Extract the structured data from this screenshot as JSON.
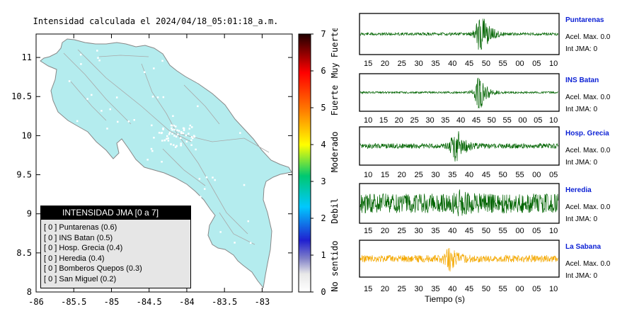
{
  "map": {
    "title": "Intensidad calculada el 2024/04/18_05:01:18_a.m.",
    "x_ticks": [
      "-86",
      "-85.5",
      "-85",
      "-84.5",
      "-84",
      "-83.5",
      "-83"
    ],
    "y_ticks": [
      "11",
      "10.5",
      "10",
      "9.5",
      "9",
      "8.5",
      "8"
    ],
    "xlim": [
      -86,
      -82.6
    ],
    "ylim": [
      8,
      11.3
    ],
    "land_color": "#b4ecee"
  },
  "legend": {
    "title": "INTENSIDAD JMA [0 a 7]",
    "items": [
      "[ 0 ]  Puntarenas (0.6)",
      "[ 0 ]  INS Batan (0.5)",
      "[ 0 ]  Hosp. Grecia (0.4)",
      "[ 0 ]  Heredia (0.4)",
      "[ 0 ]  Bomberos Quepos (0.3)",
      "[ 0 ]  San Miguel (0.2)"
    ]
  },
  "colorbar": {
    "ticks": [
      "7",
      "6",
      "5",
      "4",
      "3",
      "2",
      "1",
      "0"
    ],
    "labels": [
      "Muy Fuerte",
      "Fuerte",
      "Moderado",
      "Debil",
      "No sentido"
    ],
    "range": [
      0,
      7
    ]
  },
  "chart_data": [
    {
      "type": "line",
      "name": "Puntarenas",
      "acel": "Acel. Max. 0.0",
      "int": "Int JMA: 0",
      "color": "#006400",
      "x_ticks": [
        "15",
        "20",
        "25",
        "30",
        "35",
        "40",
        "45",
        "50",
        "55",
        "00",
        "05",
        "10"
      ],
      "event_at": 0.61,
      "noise": 0.08,
      "event_amp": 0.9
    },
    {
      "type": "line",
      "name": "INS Batan",
      "acel": "Acel. Max. 0.0",
      "int": "Int JMA: 0",
      "color": "#006400",
      "x_ticks": [
        "10",
        "15",
        "20",
        "25",
        "30",
        "35",
        "40",
        "45",
        "50",
        "55",
        "00",
        "05",
        "10"
      ],
      "event_at": 0.6,
      "noise": 0.06,
      "event_amp": 0.75
    },
    {
      "type": "line",
      "name": "Hosp. Grecia",
      "acel": "Acel. Max. 0.0",
      "int": "Int JMA: 0",
      "color": "#006400",
      "x_ticks": [
        "10",
        "15",
        "20",
        "25",
        "30",
        "35",
        "40",
        "45",
        "50",
        "55",
        "00",
        "05"
      ],
      "event_at": 0.48,
      "noise": 0.15,
      "event_amp": 0.8
    },
    {
      "type": "line",
      "name": "Heredia",
      "acel": "Acel. Max. 0.0",
      "int": "Int JMA: 0",
      "color": "#006400",
      "x_ticks": [
        "15",
        "20",
        "25",
        "30",
        "35",
        "40",
        "45",
        "50",
        "55",
        "00",
        "05",
        "10"
      ],
      "event_at": 0.5,
      "noise": 0.55,
      "event_amp": 0.2
    },
    {
      "type": "line",
      "name": "La Sabana",
      "acel": "Acel. Max. 0.0",
      "int": "Int JMA: 0",
      "color": "#f4a800",
      "x_ticks": [
        "15",
        "20",
        "25",
        "30",
        "35",
        "40",
        "45",
        "50",
        "55",
        "00",
        "05",
        "10"
      ],
      "event_at": 0.45,
      "noise": 0.22,
      "event_amp": 0.45
    }
  ],
  "x_axis_label": "Tiempo (s)"
}
